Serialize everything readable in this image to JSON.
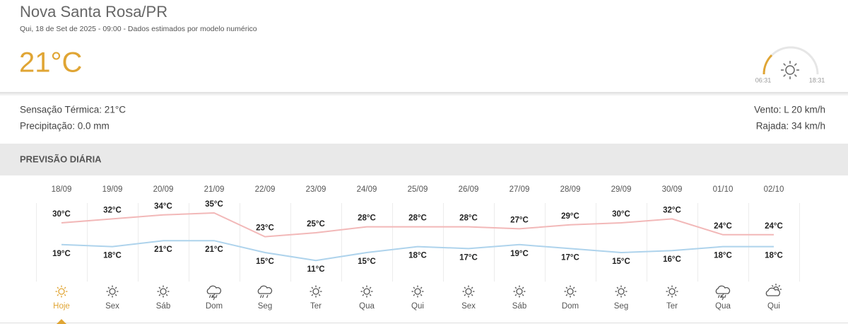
{
  "header": {
    "city": "Nova Santa Rosa/PR",
    "subtitle": "Qui, 18 de Set de 2025 - 09:00 - Dados estimados por modelo numérico",
    "temperature": "21°C",
    "sunrise": "06:31",
    "sunset": "18:31"
  },
  "details": {
    "feels_like": "Sensação Térmica: 21°C",
    "precipitation": "Precipitação: 0.0 mm",
    "wind": "Vento: L 20 km/h",
    "gust": "Rajada: 34 km/h"
  },
  "forecast": {
    "title": "PREVISÃO DIÁRIA",
    "dates": [
      "18/09",
      "19/09",
      "20/09",
      "21/09",
      "22/09",
      "23/09",
      "24/09",
      "25/09",
      "26/09",
      "27/09",
      "28/09",
      "29/09",
      "30/09",
      "01/10",
      "02/10"
    ],
    "weekdays": [
      "Hoje",
      "Sex",
      "Sáb",
      "Dom",
      "Seg",
      "Ter",
      "Qua",
      "Qui",
      "Sex",
      "Sáb",
      "Dom",
      "Seg",
      "Ter",
      "Qua",
      "Qui"
    ],
    "icons": [
      "sun",
      "sun",
      "sun",
      "storm",
      "rain",
      "sun",
      "sun",
      "sun",
      "sun",
      "sun",
      "sun",
      "sun",
      "sun",
      "storm",
      "partly-cloudy"
    ],
    "max": {
      "color": "#f2b8b8",
      "values": [
        30,
        32,
        34,
        35,
        23,
        25,
        28,
        28,
        28,
        27,
        29,
        30,
        32,
        24,
        24
      ],
      "value_labels": [
        "30°C",
        "32°C",
        "34°C",
        "35°C",
        "23°C",
        "25°C",
        "28°C",
        "28°C",
        "28°C",
        "27°C",
        "29°C",
        "30°C",
        "32°C",
        "24°C",
        "24°C"
      ]
    },
    "min": {
      "color": "#aed3ec",
      "values": [
        19,
        18,
        21,
        21,
        15,
        11,
        15,
        18,
        17,
        19,
        17,
        15,
        16,
        18,
        18
      ],
      "value_labels": [
        "19°C",
        "18°C",
        "21°C",
        "21°C",
        "15°C",
        "11°C",
        "15°C",
        "18°C",
        "17°C",
        "19°C",
        "17°C",
        "15°C",
        "16°C",
        "18°C",
        "18°C"
      ]
    }
  }
}
